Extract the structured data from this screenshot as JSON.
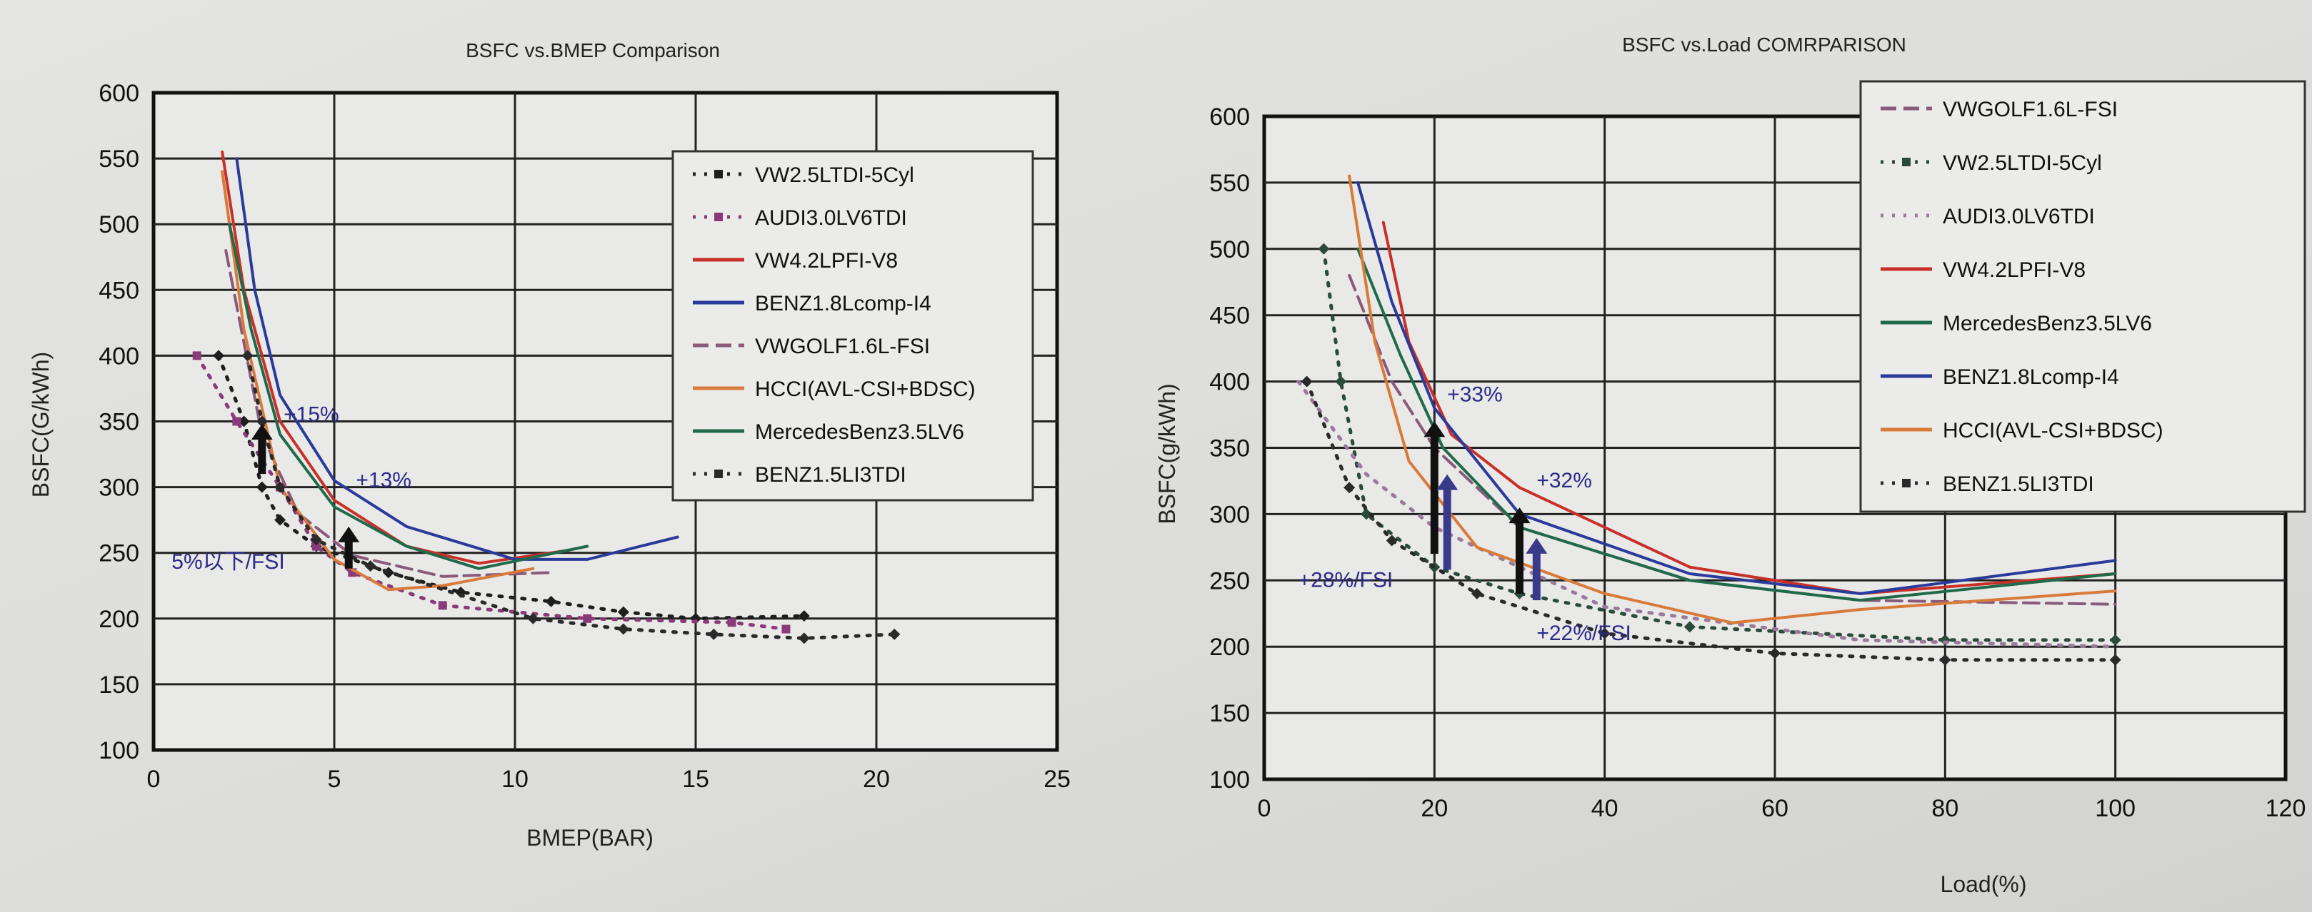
{
  "chart_data": [
    {
      "type": "line",
      "title": "BSFC vs.BMEP Comparison",
      "xlabel": "BMEP(BAR)",
      "ylabel": "BSFC(G/kWh)",
      "xlim": [
        0,
        25
      ],
      "ylim": [
        100,
        600
      ],
      "xticks": [
        0,
        5,
        10,
        15,
        20,
        25
      ],
      "yticks": [
        100,
        150,
        200,
        250,
        300,
        350,
        400,
        450,
        500,
        550,
        600
      ],
      "grid": true,
      "legend_position": "top-right",
      "series": [
        {
          "name": "VW2.5LTDI-5Cyl",
          "color": "#1e1e1e",
          "style": "dotted-diamond",
          "x": [
            1.8,
            2.5,
            3,
            3.5,
            4.5,
            6.5,
            8.5,
            11,
            13,
            15,
            18
          ],
          "y": [
            400,
            350,
            300,
            275,
            255,
            235,
            220,
            213,
            205,
            200,
            202
          ]
        },
        {
          "name": "AUDI3.0LV6TDI",
          "color": "#8a3a78",
          "style": "dotted-square",
          "x": [
            1.2,
            2.3,
            3.5,
            4.5,
            5.5,
            8,
            12,
            16,
            17.5
          ],
          "y": [
            400,
            350,
            300,
            255,
            235,
            210,
            200,
            197,
            192
          ]
        },
        {
          "name": "VW4.2LPFI-V8",
          "color": "#c8302a",
          "style": "solid",
          "x": [
            1.9,
            2.5,
            3.5,
            5,
            7,
            9,
            11.5
          ],
          "y": [
            555,
            450,
            350,
            290,
            255,
            242,
            252
          ]
        },
        {
          "name": "BENZ1.8Lcomp-I4",
          "color": "#2a3a9a",
          "style": "solid",
          "x": [
            2.3,
            2.8,
            3.5,
            5,
            7,
            10,
            12,
            14.5
          ],
          "y": [
            550,
            450,
            370,
            305,
            270,
            245,
            245,
            262
          ]
        },
        {
          "name": "VWGOLF1.6L-FSI",
          "color": "#8a5a7a",
          "style": "dashed",
          "x": [
            2,
            3,
            4,
            5.5,
            8,
            11
          ],
          "y": [
            480,
            340,
            280,
            248,
            232,
            235
          ]
        },
        {
          "name": "HCCI(AVL-CSI+BDSC)",
          "color": "#d87a3a",
          "style": "solid",
          "x": [
            1.9,
            2.5,
            3.5,
            5,
            6.5,
            8,
            10.5
          ],
          "y": [
            540,
            420,
            300,
            245,
            222,
            225,
            238
          ]
        },
        {
          "name": "MercedesBenz3.5LV6",
          "color": "#1f6a4a",
          "style": "solid",
          "x": [
            2.1,
            2.7,
            3.5,
            5,
            7,
            9,
            12
          ],
          "y": [
            500,
            420,
            340,
            285,
            255,
            238,
            255
          ]
        },
        {
          "name": "BENZ1.5LI3TDI",
          "color": "#2a2a2a",
          "style": "dotted-diamond",
          "x": [
            2.6,
            3,
            3.5,
            4.5,
            6,
            10.5,
            13,
            15.5,
            18,
            20.5
          ],
          "y": [
            400,
            350,
            300,
            260,
            240,
            200,
            192,
            188,
            185,
            188
          ]
        }
      ],
      "annotations": [
        {
          "text": "+15%",
          "x": 3.6,
          "y": 350
        },
        {
          "text": "+13%",
          "x": 5.6,
          "y": 300
        },
        {
          "text": "5%以下/FSI",
          "x": 0.5,
          "y": 238
        }
      ],
      "arrows": [
        {
          "x": 3,
          "from": 310,
          "to": 348,
          "color": "#111"
        },
        {
          "x": 5.4,
          "from": 238,
          "to": 270,
          "color": "#111"
        }
      ]
    },
    {
      "type": "line",
      "title": "BSFC vs.Load COMRPARISON",
      "xlabel": "Load(%)",
      "ylabel": "BSFC(g/kWh)",
      "xlim": [
        0,
        120
      ],
      "ylim": [
        100,
        600
      ],
      "xticks": [
        0,
        20,
        40,
        60,
        80,
        100,
        120
      ],
      "yticks": [
        100,
        150,
        200,
        250,
        300,
        350,
        400,
        450,
        500,
        550,
        600
      ],
      "grid": true,
      "legend_position": "top-right",
      "series": [
        {
          "name": "VWGOLF1.6L-FSI",
          "color": "#8a5a7a",
          "style": "dashed",
          "x": [
            10,
            15,
            20,
            30,
            50,
            70,
            100
          ],
          "y": [
            480,
            400,
            350,
            290,
            250,
            235,
            232
          ]
        },
        {
          "name": "VW2.5LTDI-5Cyl",
          "color": "#2a4a3a",
          "style": "dotted-diamond",
          "x": [
            7,
            9,
            12,
            20,
            30,
            50,
            80,
            100
          ],
          "y": [
            500,
            400,
            300,
            260,
            240,
            215,
            205,
            205
          ]
        },
        {
          "name": "AUDI3.0LV6TDI",
          "color": "#9a7a9a",
          "style": "dotted",
          "x": [
            4,
            12,
            20,
            40,
            70,
            100
          ],
          "y": [
            400,
            330,
            290,
            230,
            205,
            200
          ]
        },
        {
          "name": "VW4.2LPFI-V8",
          "color": "#c8302a",
          "style": "solid",
          "x": [
            14,
            17,
            22,
            30,
            50,
            70,
            100
          ],
          "y": [
            520,
            430,
            360,
            320,
            260,
            240,
            255
          ]
        },
        {
          "name": "MercedesBenz3.5LV6",
          "color": "#1f6a4a",
          "style": "solid",
          "x": [
            11,
            16,
            21,
            30,
            50,
            70,
            100
          ],
          "y": [
            500,
            420,
            350,
            290,
            250,
            235,
            255
          ]
        },
        {
          "name": "BENZ1.8Lcomp-I4",
          "color": "#2a3a9a",
          "style": "solid",
          "x": [
            11,
            15,
            20,
            30,
            50,
            70,
            100
          ],
          "y": [
            550,
            460,
            380,
            300,
            255,
            240,
            265
          ]
        },
        {
          "name": "HCCI(AVL-CSI+BDSC)",
          "color": "#d87a3a",
          "style": "solid",
          "x": [
            10,
            13,
            17,
            25,
            40,
            55,
            70,
            100
          ],
          "y": [
            555,
            430,
            340,
            275,
            240,
            218,
            228,
            242
          ]
        },
        {
          "name": "BENZ1.5LI3TDI",
          "color": "#2a2a2a",
          "style": "dotted-diamond",
          "x": [
            5,
            10,
            15,
            25,
            40,
            60,
            80,
            100
          ],
          "y": [
            400,
            320,
            280,
            240,
            210,
            195,
            190,
            190
          ]
        }
      ],
      "annotations": [
        {
          "text": "+33%",
          "x": 21.5,
          "y": 385
        },
        {
          "text": "+32%",
          "x": 32,
          "y": 320
        },
        {
          "text": "+28%/FSI",
          "x": 4,
          "y": 245
        },
        {
          "text": "+22%/FSI",
          "x": 32,
          "y": 205
        }
      ],
      "arrows": [
        {
          "x": 20,
          "from": 270,
          "to": 370,
          "color": "#111"
        },
        {
          "x": 21.5,
          "from": 258,
          "to": 330,
          "color": "#3a3a8a"
        },
        {
          "x": 30,
          "from": 240,
          "to": 305,
          "color": "#111"
        },
        {
          "x": 32,
          "from": 235,
          "to": 282,
          "color": "#3a3a8a"
        }
      ]
    }
  ]
}
